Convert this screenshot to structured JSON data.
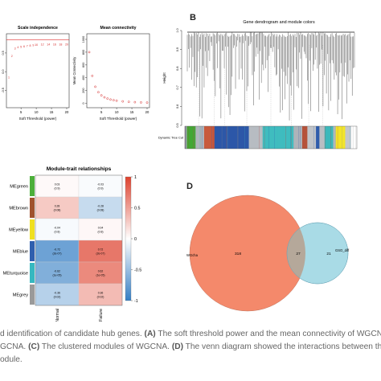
{
  "panels": {
    "A": {
      "left": {
        "title": "Scale independence",
        "xlabel": "Soft Threshold (power)",
        "ylabel": "",
        "xticks": [
          "5",
          "10",
          "15",
          "20"
        ],
        "yticks": [
          "-0.5",
          "0.0",
          "0.5"
        ],
        "points": [
          {
            "x": 1,
            "y": -0.15,
            "label": "1"
          },
          {
            "x": 2,
            "y": 0.42,
            "label": "2"
          },
          {
            "x": 3,
            "y": 0.63,
            "label": "3"
          },
          {
            "x": 4,
            "y": 0.66,
            "label": "4"
          },
          {
            "x": 5,
            "y": 0.67,
            "label": "5"
          },
          {
            "x": 6,
            "y": 0.68,
            "label": "6"
          },
          {
            "x": 7,
            "y": 0.69,
            "label": "7"
          },
          {
            "x": 8,
            "y": 0.7,
            "label": "8"
          },
          {
            "x": 9,
            "y": 0.71,
            "label": "9"
          },
          {
            "x": 10,
            "y": 0.72,
            "label": "10"
          },
          {
            "x": 12,
            "y": 0.73,
            "label": "12"
          },
          {
            "x": 14,
            "y": 0.74,
            "label": "14"
          },
          {
            "x": 16,
            "y": 0.74,
            "label": "16"
          },
          {
            "x": 18,
            "y": 0.73,
            "label": "18"
          },
          {
            "x": 20,
            "y": 0.73,
            "label": "20"
          }
        ]
      },
      "right": {
        "title": "Mean connectivity",
        "xlabel": "Soft Threshold (power)",
        "ylabel": "Mean Connectivity",
        "xticks": [
          "5",
          "10",
          "15",
          "20"
        ],
        "yticks": [
          "0",
          "200",
          "400",
          "600",
          "800",
          "1000"
        ],
        "points": [
          {
            "x": 1,
            "y": 800
          },
          {
            "x": 2,
            "y": 430
          },
          {
            "x": 3,
            "y": 260
          },
          {
            "x": 4,
            "y": 175
          },
          {
            "x": 5,
            "y": 125
          },
          {
            "x": 6,
            "y": 95
          },
          {
            "x": 7,
            "y": 75
          },
          {
            "x": 8,
            "y": 60
          },
          {
            "x": 9,
            "y": 50
          },
          {
            "x": 10,
            "y": 42
          },
          {
            "x": 12,
            "y": 31
          },
          {
            "x": 14,
            "y": 24
          },
          {
            "x": 16,
            "y": 19
          },
          {
            "x": 18,
            "y": 15
          },
          {
            "x": 20,
            "y": 12
          }
        ]
      }
    },
    "B": {
      "title": "Gene dendrogram and module colors",
      "ylabel": "Height",
      "yticks": [
        "0.5",
        "0.6",
        "0.7",
        "0.8",
        "0.9",
        "1.0"
      ],
      "bar_label": "Dynamic Tree Cut",
      "module_bar": [
        {
          "color": "#9aa0a6",
          "w": 0.012
        },
        {
          "color": "#42a835",
          "w": 0.05
        },
        {
          "color": "#b0b6bc",
          "w": 0.05
        },
        {
          "color": "#c85a3c",
          "w": 0.06
        },
        {
          "color": "#2c57a8",
          "w": 0.2
        },
        {
          "color": "#b7bcc2",
          "w": 0.08
        },
        {
          "color": "#3fbcbf",
          "w": 0.18
        },
        {
          "color": "#aeb3b9",
          "w": 0.05
        },
        {
          "color": "#b5523a",
          "w": 0.03
        },
        {
          "color": "#c0c4c9",
          "w": 0.05
        },
        {
          "color": "#2f5cab",
          "w": 0.02
        },
        {
          "color": "#b9bec3",
          "w": 0.03
        },
        {
          "color": "#3cb8bb",
          "w": 0.05
        },
        {
          "color": "#b3b8be",
          "w": 0.015
        },
        {
          "color": "#f2e52a",
          "w": 0.055
        },
        {
          "color": "#c4c8cd",
          "w": 0.033
        }
      ]
    },
    "C": {
      "title": "Module-trait relationships",
      "rows": [
        "MEgreen",
        "MEbrown",
        "MEyellow",
        "MEblue",
        "MEturquoise",
        "MEgrey"
      ],
      "row_colors": [
        "#4caf3a",
        "#a0522d",
        "#f0e020",
        "#2f5fae",
        "#36b8c0",
        "#9a9a9a"
      ],
      "columns": [
        "Normal",
        "Heart Failure"
      ],
      "cells": [
        [
          {
            "v": 0.03,
            "t": "0.03",
            "p": "(0.9)"
          },
          {
            "v": -0.03,
            "t": "-0.03",
            "p": "(0.9)"
          }
        ],
        [
          {
            "v": 0.28,
            "t": "0.28",
            "p": "(0.08)"
          },
          {
            "v": -0.28,
            "t": "-0.28",
            "p": "(0.08)"
          }
        ],
        [
          {
            "v": -0.04,
            "t": "-0.04",
            "p": "(0.8)"
          },
          {
            "v": 0.04,
            "t": "0.04",
            "p": "(0.8)"
          }
        ],
        [
          {
            "v": -0.72,
            "t": "-0.72",
            "p": "(2e-07)"
          },
          {
            "v": 0.72,
            "t": "0.72",
            "p": "(2e-07)"
          }
        ],
        [
          {
            "v": -0.62,
            "t": "-0.62",
            "p": "(1e-05)"
          },
          {
            "v": 0.62,
            "t": "0.62",
            "p": "(1e-05)"
          }
        ],
        [
          {
            "v": -0.36,
            "t": "-0.36",
            "p": "(0.02)"
          },
          {
            "v": 0.36,
            "t": "0.36",
            "p": "(0.02)"
          }
        ]
      ],
      "legend_ticks": [
        "1",
        "0.5",
        "0",
        "-0.5",
        "-1"
      ]
    },
    "D": {
      "sets": [
        {
          "name": "WGcha",
          "only": "318",
          "color": "#f4896b"
        },
        {
          "name": "GSO_diff",
          "only": "21",
          "color": "#a9dbe6"
        }
      ],
      "overlap": "27"
    }
  },
  "caption": {
    "line1_pre": "d identification of candidate hub genes. ",
    "line1_a": "(A)",
    "line1_post": " The soft threshold power and the mean connectivity of WGCNA.",
    "line2_pre": "GCNA. ",
    "line2_c": "(C)",
    "line2_mid": " The clustered modules of WGCNA. ",
    "line2_d": "(D)",
    "line2_post": " The venn diagram showed the interactions between the D",
    "line3": "odule."
  }
}
